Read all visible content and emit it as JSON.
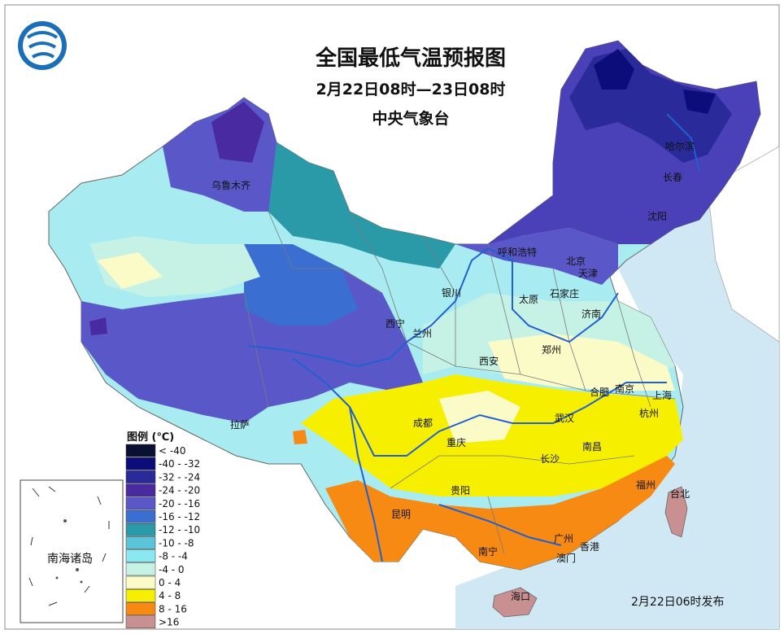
{
  "header": {
    "title": "全国最低气温预报图",
    "period": "2月22日08时—23日08时",
    "agency": "中央气象台"
  },
  "legend": {
    "title": "图例 (℃)",
    "items": [
      {
        "label": "< -40",
        "color": "#0a1030"
      },
      {
        "label": "-40 - -32",
        "color": "#0c0c7a"
      },
      {
        "label": "-32 - -24",
        "color": "#2a2a9a"
      },
      {
        "label": "-24 - -20",
        "color": "#4a2aa0"
      },
      {
        "label": "-20 - -16",
        "color": "#5a58c8"
      },
      {
        "label": "-16 - -12",
        "color": "#3a6ed0"
      },
      {
        "label": "-12 - -10",
        "color": "#2a9aa8"
      },
      {
        "label": "-10 - -8",
        "color": "#5cc4d8"
      },
      {
        "label": "-8 - -4",
        "color": "#8ae8f0"
      },
      {
        "label": "-4 - 0",
        "color": "#c6f2e6"
      },
      {
        "label": "0 - 4",
        "color": "#fbfbc8"
      },
      {
        "label": "4 - 8",
        "color": "#f6f000"
      },
      {
        "label": "8 - 16",
        "color": "#f78a12"
      },
      {
        "label": ">16",
        "color": "#c89090"
      }
    ]
  },
  "cities": [
    {
      "name": "哈尔滨"
    },
    {
      "name": "长春"
    },
    {
      "name": "沈阳"
    },
    {
      "name": "乌鲁木齐"
    },
    {
      "name": "呼和浩特"
    },
    {
      "name": "北京"
    },
    {
      "name": "天津"
    },
    {
      "name": "石家庄"
    },
    {
      "name": "太原"
    },
    {
      "name": "济南"
    },
    {
      "name": "银川"
    },
    {
      "name": "西宁"
    },
    {
      "name": "兰州"
    },
    {
      "name": "西安"
    },
    {
      "name": "郑州"
    },
    {
      "name": "合肥"
    },
    {
      "name": "南京"
    },
    {
      "name": "上海"
    },
    {
      "name": "杭州"
    },
    {
      "name": "武汉"
    },
    {
      "name": "成都"
    },
    {
      "name": "重庆"
    },
    {
      "name": "拉萨"
    },
    {
      "name": "长沙"
    },
    {
      "name": "南昌"
    },
    {
      "name": "贵阳"
    },
    {
      "name": "昆明"
    },
    {
      "name": "福州"
    },
    {
      "name": "台北"
    },
    {
      "name": "南宁"
    },
    {
      "name": "广州"
    },
    {
      "name": "香港"
    },
    {
      "name": "澳门"
    },
    {
      "name": "海口"
    }
  ],
  "inset": {
    "label": "南海诸岛"
  },
  "footer": {
    "issued": "2月22日06时发布"
  }
}
